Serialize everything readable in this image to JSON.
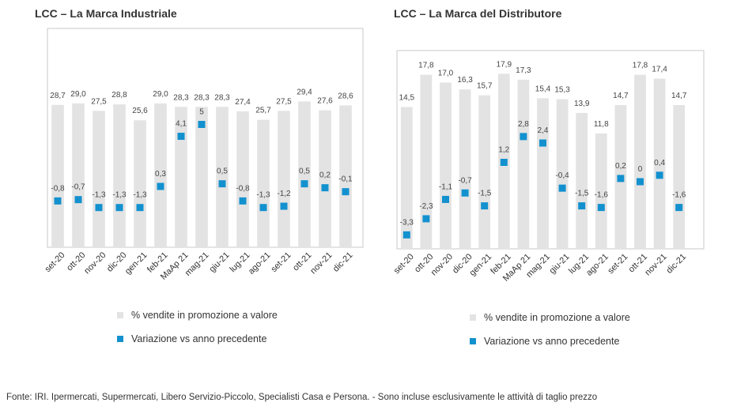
{
  "charts": [
    {
      "title": "LCC – La Marca Industriale",
      "legend": {
        "bar_label": "% vendite in promozione a valore",
        "marker_label": "Variazione vs anno precedente"
      }
    },
    {
      "title": "LCC – La Marca del Distributore",
      "legend": {
        "bar_label": "% vendite in promozione a valore",
        "marker_label": "Variazione vs anno precedente"
      }
    }
  ],
  "source_note": "Fonte: IRI. Ipermercati, Supermercati, Libero Servizio-Piccolo, Specialisti Casa e Persona. - Sono incluse esclusivamente le attività di taglio prezzo",
  "colors": {
    "bar": "#e3e3e3",
    "marker": "#1391cf",
    "plot_border": "#c8c8c8"
  },
  "chart_data": [
    {
      "type": "bar",
      "title": "LCC – La Marca Industriale",
      "categories": [
        "set-20",
        "ott-20",
        "nov-20",
        "dic-20",
        "gen-21",
        "feb-21",
        "MaAp 21",
        "mag-21",
        "giu-21",
        "lug-21",
        "ago-21",
        "set-21",
        "ott-21",
        "nov-21",
        "dic-21"
      ],
      "series": [
        {
          "name": "% vendite in promozione a valore",
          "values": [
            28.7,
            29.0,
            27.5,
            28.8,
            25.6,
            29.0,
            28.3,
            28.3,
            28.3,
            27.4,
            25.7,
            27.5,
            29.4,
            27.6,
            28.6
          ],
          "labels": [
            "28,7",
            "29,0",
            "27,5",
            "28,8",
            "25,6",
            "29,0",
            "28,3",
            "28,3",
            "28,3",
            "27,4",
            "25,7",
            "27,5",
            "29,4",
            "27,6",
            "28,6"
          ]
        },
        {
          "name": "Variazione vs anno precedente",
          "values": [
            -0.8,
            -0.7,
            -1.3,
            -1.3,
            -1.3,
            0.3,
            4.1,
            5,
            0.5,
            -0.8,
            -1.3,
            -1.2,
            0.5,
            0.2,
            -0.1
          ],
          "labels": [
            "-0,8",
            "-0,7",
            "-1,3",
            "-1,3",
            "-1,3",
            "0,3",
            "4,1",
            "5",
            "0,5",
            "-0,8",
            "-1,3",
            "-1,2",
            "0,5",
            "0,2",
            "-0,1"
          ]
        }
      ],
      "legend_position": "bottom"
    },
    {
      "type": "bar",
      "title": "LCC – La Marca del Distributore",
      "categories": [
        "set-20",
        "ott-20",
        "nov-20",
        "dic-20",
        "gen-21",
        "feb-21",
        "MaAp 21",
        "mag-21",
        "giu-21",
        "lug-21",
        "ago-21",
        "set-21",
        "ott-21",
        "nov-21",
        "dic-21"
      ],
      "series": [
        {
          "name": "% vendite in promozione a valore",
          "values": [
            14.5,
            17.8,
            17.0,
            16.3,
            15.7,
            17.9,
            17.3,
            15.4,
            15.3,
            13.9,
            11.8,
            14.7,
            17.8,
            17.4,
            14.7
          ],
          "labels": [
            "14,5",
            "17,8",
            "17,0",
            "16,3",
            "15,7",
            "17,9",
            "17,3",
            "15,4",
            "15,3",
            "13,9",
            "11,8",
            "14,7",
            "17,8",
            "17,4",
            "14,7"
          ]
        },
        {
          "name": "Variazione vs anno precedente",
          "values": [
            -3.3,
            -2.3,
            -1.1,
            -0.7,
            -1.5,
            1.2,
            2.8,
            2.4,
            -0.4,
            -1.5,
            -1.6,
            0.2,
            0,
            0.4,
            -1.6
          ],
          "labels": [
            "-3,3",
            "-2,3",
            "-1,1",
            "-0,7",
            "-1,5",
            "1,2",
            "2,8",
            "2,4",
            "-0,4",
            "-1,5",
            "-1,6",
            "0,2",
            "0",
            "0,4",
            "-1,6"
          ]
        }
      ],
      "legend_position": "bottom"
    }
  ]
}
